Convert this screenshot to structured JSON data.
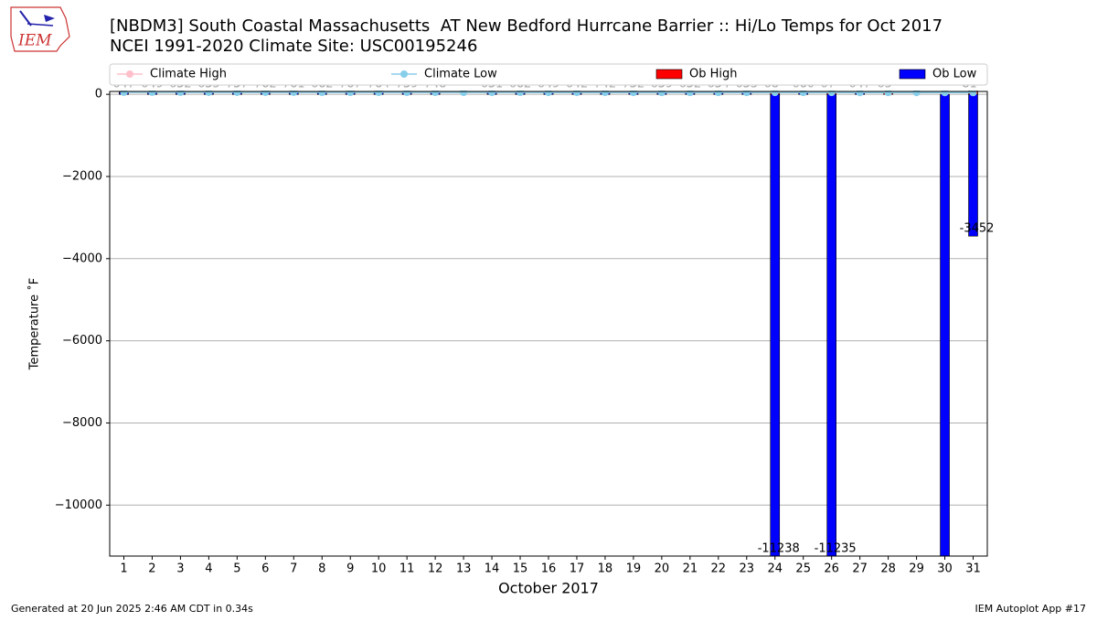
{
  "logo_text": "IEM",
  "chart_data": {
    "type": "bar",
    "title": "[NBDM3] South Coastal Massachusetts  AT New Bedford Hurrcane Barrier :: Hi/Lo Temps for Oct 2017",
    "subtitle": "NCEI 1991-2020 Climate Site: USC00195246",
    "x_label": "October 2017",
    "y_label": "Temperature ˚F",
    "categories": [
      "1",
      "2",
      "3",
      "4",
      "5",
      "6",
      "7",
      "8",
      "9",
      "10",
      "11",
      "12",
      "13",
      "14",
      "15",
      "16",
      "17",
      "18",
      "19",
      "20",
      "21",
      "22",
      "23",
      "24",
      "25",
      "26",
      "27",
      "28",
      "29",
      "30",
      "31"
    ],
    "series": [
      {
        "name": "Climate High",
        "type": "line",
        "color": "#ffc0cb",
        "values": [
          65,
          65,
          65,
          64,
          64,
          64,
          64,
          63,
          63,
          63,
          63,
          62,
          62,
          62,
          62,
          61,
          61,
          61,
          61,
          60,
          60,
          60,
          60,
          59,
          59,
          59,
          59,
          58,
          58,
          58,
          57
        ]
      },
      {
        "name": "Climate Low",
        "type": "line",
        "color": "#87ceeb",
        "values": [
          50,
          50,
          50,
          49,
          49,
          49,
          49,
          48,
          48,
          48,
          48,
          47,
          47,
          47,
          47,
          46,
          46,
          46,
          45,
          45,
          45,
          45,
          44,
          44,
          44,
          44,
          43,
          43,
          43,
          42,
          42
        ]
      },
      {
        "name": "Ob High",
        "type": "bar",
        "color": "#ff0000",
        "values": [
          64,
          64,
          65,
          65,
          75,
          76,
          76,
          66,
          76,
          76,
          75,
          74,
          null,
          65,
          66,
          64,
          64,
          74,
          75,
          65,
          65,
          65,
          65,
          68,
          66,
          67,
          64,
          65,
          null,
          null,
          81
        ]
      },
      {
        "name": "Ob Low",
        "type": "bar",
        "color": "#0000ff",
        "values": [
          47,
          49,
          52,
          55,
          57,
          62,
          61,
          62,
          67,
          64,
          59,
          48,
          null,
          51,
          62,
          49,
          42,
          42,
          52,
          59,
          52,
          54,
          53,
          -11238,
          60,
          -11235,
          47,
          null,
          null,
          -11300,
          -3452
        ]
      }
    ],
    "ylim": [
      -11240,
      70
    ],
    "yticks": [
      0,
      {
        "value": -2000,
        "label": "−2000"
      },
      {
        "value": -4000,
        "label": "−4000"
      },
      {
        "value": -6000,
        "label": "−6000"
      },
      {
        "value": -8000,
        "label": "−8000"
      },
      {
        "value": -10000,
        "label": "−10000"
      }
    ],
    "grid": true,
    "legend": "top"
  },
  "footer": {
    "left": "Generated at 20 Jun 2025 2:46 AM CDT in 0.34s",
    "right": "IEM Autoplot App #17"
  }
}
